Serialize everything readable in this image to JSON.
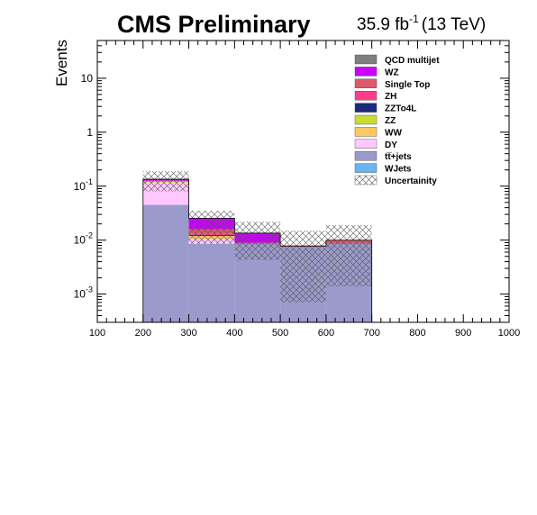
{
  "header": {
    "experiment_label": "CMS Preliminary",
    "lumi_value": "35.9 fb",
    "lumi_exponent": "-1",
    "energy_label": "(13 TeV)"
  },
  "chart_data": {
    "type": "bar",
    "stacked": true,
    "log_y": true,
    "ylabel": "Events",
    "xlabel": "",
    "xlim": [
      100,
      1000
    ],
    "ylim": [
      0.0003,
      50
    ],
    "x_ticks": [
      "100",
      "200",
      "300",
      "400",
      "500",
      "600",
      "700",
      "800",
      "900",
      "1000"
    ],
    "y_ticks": [
      {
        "value": 0.001,
        "base": "10",
        "exp": "-3"
      },
      {
        "value": 0.01,
        "base": "10",
        "exp": "-2"
      },
      {
        "value": 0.1,
        "base": "10",
        "exp": "-1"
      },
      {
        "value": 1,
        "base": "1",
        "exp": ""
      },
      {
        "value": 10,
        "base": "10",
        "exp": ""
      }
    ],
    "bins": [
      [
        200,
        300
      ],
      [
        300,
        400
      ],
      [
        400,
        500
      ],
      [
        500,
        600
      ],
      [
        600,
        700
      ]
    ],
    "stack_order_bottom_to_top": [
      "tt+jets",
      "DY",
      "WW",
      "ZZ",
      "ZZTo4L",
      "ZH",
      "Single Top",
      "WZ"
    ],
    "series": [
      {
        "name": "QCD multijet",
        "color": "#7f7f7f",
        "values": [
          0,
          0,
          0,
          0,
          0
        ]
      },
      {
        "name": "WZ",
        "color": "#cc00ff",
        "values": [
          0.009,
          0.0095,
          0.0045,
          0,
          0
        ]
      },
      {
        "name": "Single Top",
        "color": "#de5a6a",
        "values": [
          0.003,
          0.003,
          0.0005,
          0.0003,
          0.0015
        ]
      },
      {
        "name": "ZH",
        "color": "#ff3c8c",
        "values": [
          0,
          0.0005,
          0,
          0,
          0
        ]
      },
      {
        "name": "ZZTo4L",
        "color": "#1c2a7a",
        "values": [
          0,
          0.0005,
          0,
          0,
          0
        ]
      },
      {
        "name": "ZZ",
        "color": "#c8dc32",
        "values": [
          0.004,
          0,
          0,
          0,
          0
        ]
      },
      {
        "name": "WW",
        "color": "#fcc864",
        "values": [
          0.004,
          0.0015,
          0,
          0,
          0
        ]
      },
      {
        "name": "DY",
        "color": "#ffc8ff",
        "values": [
          0.07,
          0.002,
          0,
          0,
          0
        ]
      },
      {
        "name": "tt+jets",
        "color": "#9a9acc",
        "values": [
          0.045,
          0.0085,
          0.0085,
          0.0075,
          0.0085
        ]
      },
      {
        "name": "WJets",
        "color": "#6ab4f0",
        "values": [
          0,
          0,
          0,
          0,
          0
        ]
      }
    ],
    "uncertainty": {
      "name": "Uncertainty",
      "low": [
        0.08,
        0.0085,
        0.0043,
        0.0007,
        0.0014
      ],
      "high": [
        0.19,
        0.035,
        0.022,
        0.015,
        0.019
      ]
    },
    "legend": {
      "placement": "top-right",
      "entries": [
        "QCD multijet",
        "WZ",
        "Single Top",
        "ZH",
        "ZZTo4L",
        "ZZ",
        "WW",
        "DY",
        "tt+jets",
        "WJets",
        "Uncertainity"
      ],
      "display_labels": [
        "QCD multijet",
        "WZ",
        "Single Top",
        "ZH",
        "ZZTo4L",
        "ZZ",
        "WW",
        "DY",
        "tt̅+jets",
        "WJets",
        "Uncertainity"
      ]
    }
  }
}
